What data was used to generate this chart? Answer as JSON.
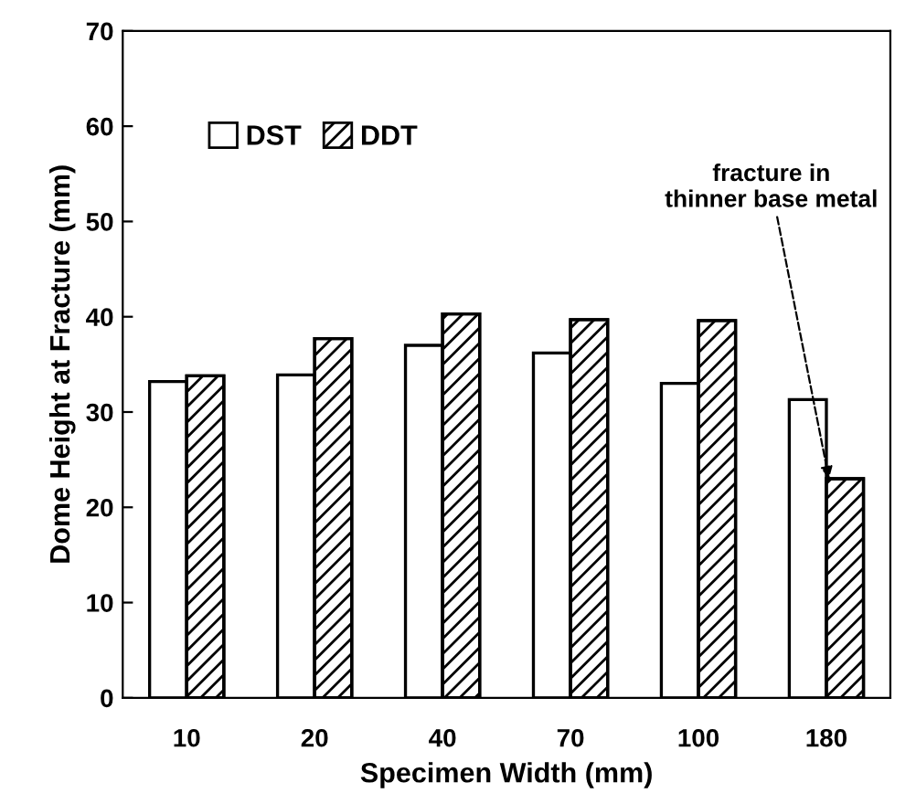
{
  "chart_data": {
    "type": "bar",
    "xlabel": "Specimen Width (mm)",
    "ylabel": "Dome Height at Fracture (mm)",
    "categories": [
      "10",
      "20",
      "40",
      "70",
      "100",
      "180"
    ],
    "series": [
      {
        "name": "DST",
        "color": "#ffffff",
        "values": [
          33.2,
          33.9,
          37.0,
          36.2,
          33.0,
          31.3
        ]
      },
      {
        "name": "DDT",
        "color": "#000000",
        "values": [
          33.8,
          37.7,
          40.3,
          39.7,
          39.6,
          23.0
        ]
      }
    ],
    "ylim": [
      0,
      70
    ],
    "yticks": [
      0,
      10,
      20,
      30,
      40,
      50,
      60,
      70
    ],
    "grid": false,
    "legend": "top left",
    "annotations": [
      {
        "text": "fracture in\nthinner base metal",
        "x": "180",
        "y": 23.0
      }
    ]
  }
}
